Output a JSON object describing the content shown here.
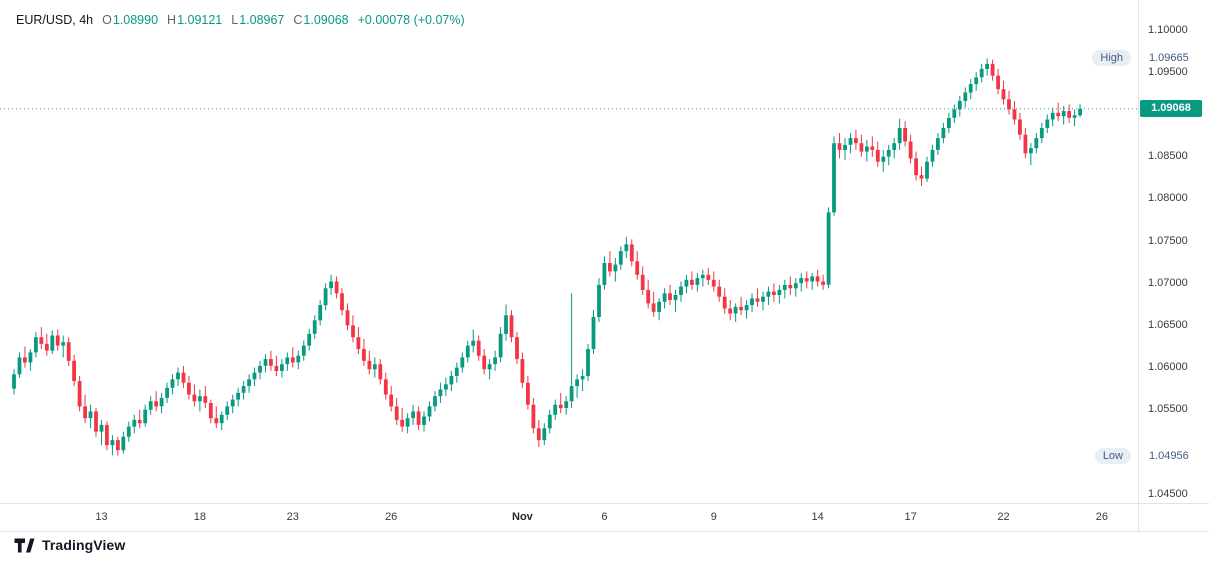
{
  "legend": {
    "symbol_interval": "EUR/USD, 4h",
    "ohlc": [
      {
        "label": "O",
        "value": "1.08990"
      },
      {
        "label": "H",
        "value": "1.09121"
      },
      {
        "label": "L",
        "value": "1.08967"
      },
      {
        "label": "C",
        "value": "1.09068"
      }
    ],
    "change": "+0.00078 (+0.07%)"
  },
  "price_axis": {
    "ticks": [
      {
        "label": "1.10000",
        "value": 1.1
      },
      {
        "label": "1.09500",
        "value": 1.095
      },
      {
        "label": "1.08500",
        "value": 1.085
      },
      {
        "label": "1.08000",
        "value": 1.08
      },
      {
        "label": "1.07500",
        "value": 1.075
      },
      {
        "label": "1.07000",
        "value": 1.07
      },
      {
        "label": "1.06500",
        "value": 1.065
      },
      {
        "label": "1.06000",
        "value": 1.06
      },
      {
        "label": "1.05500",
        "value": 1.055
      },
      {
        "label": "1.04500",
        "value": 1.045
      }
    ],
    "high_badge": {
      "label": "High",
      "value": "1.09665",
      "price": 1.09665
    },
    "low_badge": {
      "label": "Low",
      "value": "1.04956",
      "price": 1.04956
    },
    "last_badge": {
      "value": "1.09068",
      "price": 1.09068
    }
  },
  "time_axis": {
    "ticks": [
      {
        "label": "13",
        "index": 16
      },
      {
        "label": "18",
        "index": 34
      },
      {
        "label": "23",
        "index": 51
      },
      {
        "label": "26",
        "index": 69
      },
      {
        "label": "Nov",
        "index": 93,
        "major": true
      },
      {
        "label": "6",
        "index": 108
      },
      {
        "label": "9",
        "index": 128
      },
      {
        "label": "14",
        "index": 147
      },
      {
        "label": "17",
        "index": 164
      },
      {
        "label": "22",
        "index": 181
      },
      {
        "label": "26",
        "index": 199
      }
    ]
  },
  "branding": {
    "name": "TradingView"
  },
  "colors": {
    "up": "#089981",
    "down": "#F23645",
    "last_line": "#089981",
    "last_badge_bg": "#089981",
    "axis_text": "#363a45",
    "hl_text": "#45597c",
    "hl_pill_bg": "#e9edf6"
  },
  "chart_data": {
    "type": "candlestick",
    "symbol": "EUR/USD",
    "interval": "4h",
    "title": "EUR/USD 4h candlestick chart",
    "ylim": [
      1.0443,
      1.1012
    ],
    "grid": false,
    "session_high": 1.09665,
    "session_low": 1.04956,
    "last_close": 1.09068,
    "last_ohlc": {
      "open": 1.0899,
      "high": 1.09121,
      "low": 1.08967,
      "close": 1.09068,
      "change": "+0.00078",
      "change_pct": "+0.07%"
    },
    "candles": [
      [
        1.0575,
        1.0598,
        1.0568,
        1.0592
      ],
      [
        1.0592,
        1.0618,
        1.0588,
        1.0612
      ],
      [
        1.0612,
        1.0625,
        1.06,
        1.0606
      ],
      [
        1.0606,
        1.0622,
        1.0596,
        1.0618
      ],
      [
        1.0618,
        1.0642,
        1.0612,
        1.0636
      ],
      [
        1.0636,
        1.0648,
        1.0622,
        1.0628
      ],
      [
        1.0628,
        1.064,
        1.0614,
        1.062
      ],
      [
        1.062,
        1.0644,
        1.0616,
        1.0638
      ],
      [
        1.0638,
        1.0645,
        1.062,
        1.0626
      ],
      [
        1.0626,
        1.0638,
        1.0612,
        1.063
      ],
      [
        1.063,
        1.0636,
        1.0602,
        1.0608
      ],
      [
        1.0608,
        1.0615,
        1.0578,
        1.0584
      ],
      [
        1.0584,
        1.059,
        1.0548,
        1.0554
      ],
      [
        1.0554,
        1.0568,
        1.0534,
        1.054
      ],
      [
        1.054,
        1.0556,
        1.0528,
        1.0548
      ],
      [
        1.0548,
        1.0552,
        1.0518,
        1.0524
      ],
      [
        1.0524,
        1.0538,
        1.0508,
        1.0532
      ],
      [
        1.0532,
        1.0536,
        1.0502,
        1.0508
      ],
      [
        1.0508,
        1.052,
        1.0496,
        1.0514
      ],
      [
        1.0514,
        1.0518,
        1.04956,
        1.0502
      ],
      [
        1.0502,
        1.0524,
        1.0498,
        1.0518
      ],
      [
        1.0518,
        1.0536,
        1.0512,
        1.053
      ],
      [
        1.053,
        1.0544,
        1.0522,
        1.0538
      ],
      [
        1.0538,
        1.055,
        1.0528,
        1.0534
      ],
      [
        1.0534,
        1.0556,
        1.053,
        1.055
      ],
      [
        1.055,
        1.0566,
        1.0544,
        1.056
      ],
      [
        1.056,
        1.0572,
        1.0548,
        1.0554
      ],
      [
        1.0554,
        1.057,
        1.0546,
        1.0564
      ],
      [
        1.0564,
        1.0582,
        1.0558,
        1.0576
      ],
      [
        1.0576,
        1.0592,
        1.0568,
        1.0586
      ],
      [
        1.0586,
        1.06,
        1.0578,
        1.0594
      ],
      [
        1.0594,
        1.0602,
        1.0576,
        1.0582
      ],
      [
        1.0582,
        1.059,
        1.0562,
        1.0568
      ],
      [
        1.0568,
        1.058,
        1.0554,
        1.056
      ],
      [
        1.056,
        1.0574,
        1.0548,
        1.0566
      ],
      [
        1.0566,
        1.0578,
        1.0552,
        1.0558
      ],
      [
        1.0558,
        1.0562,
        1.0534,
        1.054
      ],
      [
        1.054,
        1.0554,
        1.0528,
        1.0534
      ],
      [
        1.0534,
        1.0548,
        1.0526,
        1.0544
      ],
      [
        1.0544,
        1.056,
        1.0538,
        1.0554
      ],
      [
        1.0554,
        1.0568,
        1.0546,
        1.0562
      ],
      [
        1.0562,
        1.0576,
        1.0554,
        1.057
      ],
      [
        1.057,
        1.0584,
        1.0562,
        1.0578
      ],
      [
        1.0578,
        1.0592,
        1.057,
        1.0586
      ],
      [
        1.0586,
        1.06,
        1.0578,
        1.0594
      ],
      [
        1.0594,
        1.0608,
        1.0586,
        1.0602
      ],
      [
        1.0602,
        1.0616,
        1.0594,
        1.061
      ],
      [
        1.061,
        1.062,
        1.0596,
        1.0602
      ],
      [
        1.0602,
        1.0614,
        1.059,
        1.0596
      ],
      [
        1.0596,
        1.061,
        1.0588,
        1.0604
      ],
      [
        1.0604,
        1.0618,
        1.0596,
        1.0612
      ],
      [
        1.0612,
        1.0624,
        1.06,
        1.0606
      ],
      [
        1.0606,
        1.062,
        1.0598,
        1.0614
      ],
      [
        1.0614,
        1.0632,
        1.0608,
        1.0626
      ],
      [
        1.0626,
        1.0646,
        1.062,
        1.064
      ],
      [
        1.064,
        1.0662,
        1.0634,
        1.0656
      ],
      [
        1.0656,
        1.068,
        1.065,
        1.0674
      ],
      [
        1.0674,
        1.07,
        1.0668,
        1.0694
      ],
      [
        1.0694,
        1.071,
        1.0686,
        1.0702
      ],
      [
        1.0702,
        1.0708,
        1.0682,
        1.0688
      ],
      [
        1.0688,
        1.0694,
        1.0662,
        1.0668
      ],
      [
        1.0668,
        1.0676,
        1.0644,
        1.065
      ],
      [
        1.065,
        1.0662,
        1.063,
        1.0636
      ],
      [
        1.0636,
        1.0648,
        1.0616,
        1.0622
      ],
      [
        1.0622,
        1.0634,
        1.0602,
        1.0608
      ],
      [
        1.0608,
        1.062,
        1.0592,
        1.0598
      ],
      [
        1.0598,
        1.0612,
        1.0588,
        1.0604
      ],
      [
        1.0604,
        1.061,
        1.058,
        1.0586
      ],
      [
        1.0586,
        1.0594,
        1.0562,
        1.0568
      ],
      [
        1.0568,
        1.0578,
        1.0548,
        1.0554
      ],
      [
        1.0554,
        1.0564,
        1.0532,
        1.0538
      ],
      [
        1.0538,
        1.0552,
        1.0524,
        1.053
      ],
      [
        1.053,
        1.0546,
        1.0522,
        1.054
      ],
      [
        1.054,
        1.0556,
        1.0532,
        1.0548
      ],
      [
        1.0548,
        1.0554,
        1.0526,
        1.0532
      ],
      [
        1.0532,
        1.0548,
        1.0524,
        1.0542
      ],
      [
        1.0542,
        1.056,
        1.0536,
        1.0554
      ],
      [
        1.0554,
        1.0572,
        1.0548,
        1.0566
      ],
      [
        1.0566,
        1.0582,
        1.0558,
        1.0574
      ],
      [
        1.0574,
        1.0588,
        1.0566,
        1.058
      ],
      [
        1.058,
        1.0596,
        1.0572,
        1.059
      ],
      [
        1.059,
        1.0606,
        1.0582,
        1.06
      ],
      [
        1.06,
        1.0618,
        1.0594,
        1.0612
      ],
      [
        1.0612,
        1.0632,
        1.0606,
        1.0626
      ],
      [
        1.0626,
        1.0645,
        1.0618,
        1.0632
      ],
      [
        1.0632,
        1.0638,
        1.0608,
        1.0614
      ],
      [
        1.0614,
        1.0622,
        1.0592,
        1.0598
      ],
      [
        1.0598,
        1.061,
        1.0586,
        1.0604
      ],
      [
        1.0604,
        1.062,
        1.0596,
        1.0612
      ],
      [
        1.0612,
        1.0648,
        1.0606,
        1.064
      ],
      [
        1.064,
        1.0675,
        1.0632,
        1.0662
      ],
      [
        1.0662,
        1.0668,
        1.063,
        1.0636
      ],
      [
        1.0636,
        1.0642,
        1.0604,
        1.061
      ],
      [
        1.061,
        1.0618,
        1.0576,
        1.0582
      ],
      [
        1.0582,
        1.059,
        1.055,
        1.0556
      ],
      [
        1.0556,
        1.0564,
        1.0522,
        1.0528
      ],
      [
        1.0528,
        1.0538,
        1.0506,
        1.0514
      ],
      [
        1.0514,
        1.0534,
        1.0508,
        1.0528
      ],
      [
        1.0528,
        1.055,
        1.0522,
        1.0544
      ],
      [
        1.0544,
        1.0562,
        1.0538,
        1.0556
      ],
      [
        1.0556,
        1.057,
        1.0546,
        1.0552
      ],
      [
        1.0552,
        1.0566,
        1.0544,
        1.056
      ],
      [
        1.056,
        1.0688,
        1.0552,
        1.0578
      ],
      [
        1.0578,
        1.0592,
        1.0564,
        1.0586
      ],
      [
        1.0586,
        1.0598,
        1.0572,
        1.059
      ],
      [
        1.059,
        1.0628,
        1.0584,
        1.0622
      ],
      [
        1.0622,
        1.0668,
        1.0616,
        1.066
      ],
      [
        1.066,
        1.0706,
        1.0654,
        1.0698
      ],
      [
        1.0698,
        1.0732,
        1.0692,
        1.0724
      ],
      [
        1.0724,
        1.0738,
        1.0708,
        1.0714
      ],
      [
        1.0714,
        1.073,
        1.0702,
        1.0722
      ],
      [
        1.0722,
        1.0744,
        1.0716,
        1.0738
      ],
      [
        1.0738,
        1.0755,
        1.073,
        1.0746
      ],
      [
        1.0746,
        1.0752,
        1.072,
        1.0726
      ],
      [
        1.0726,
        1.0738,
        1.0704,
        1.071
      ],
      [
        1.071,
        1.072,
        1.0686,
        1.0692
      ],
      [
        1.0692,
        1.0704,
        1.067,
        1.0676
      ],
      [
        1.0676,
        1.069,
        1.066,
        1.0666
      ],
      [
        1.0666,
        1.0682,
        1.0656,
        1.0678
      ],
      [
        1.0678,
        1.0694,
        1.067,
        1.0688
      ],
      [
        1.0688,
        1.0698,
        1.0674,
        1.068
      ],
      [
        1.068,
        1.0692,
        1.0666,
        1.0686
      ],
      [
        1.0686,
        1.0702,
        1.0678,
        1.0696
      ],
      [
        1.0696,
        1.071,
        1.0688,
        1.0704
      ],
      [
        1.0704,
        1.0714,
        1.0692,
        1.0698
      ],
      [
        1.0698,
        1.0712,
        1.069,
        1.0706
      ],
      [
        1.0706,
        1.0716,
        1.0696,
        1.071
      ],
      [
        1.071,
        1.0718,
        1.0698,
        1.0704
      ],
      [
        1.0704,
        1.0714,
        1.069,
        1.0696
      ],
      [
        1.0696,
        1.0704,
        1.0678,
        1.0684
      ],
      [
        1.0684,
        1.0694,
        1.0664,
        1.067
      ],
      [
        1.067,
        1.068,
        1.0656,
        1.0664
      ],
      [
        1.0664,
        1.0676,
        1.0654,
        1.0672
      ],
      [
        1.0672,
        1.0684,
        1.0662,
        1.0668
      ],
      [
        1.0668,
        1.068,
        1.0658,
        1.0674
      ],
      [
        1.0674,
        1.0688,
        1.0666,
        1.0682
      ],
      [
        1.0682,
        1.0694,
        1.0672,
        1.0678
      ],
      [
        1.0678,
        1.069,
        1.0668,
        1.0684
      ],
      [
        1.0684,
        1.0696,
        1.0674,
        1.069
      ],
      [
        1.069,
        1.07,
        1.0678,
        1.0686
      ],
      [
        1.0686,
        1.0698,
        1.0676,
        1.0692
      ],
      [
        1.0692,
        1.0704,
        1.0682,
        1.0698
      ],
      [
        1.0698,
        1.0708,
        1.0686,
        1.0694
      ],
      [
        1.0694,
        1.0706,
        1.0684,
        1.07
      ],
      [
        1.07,
        1.0712,
        1.069,
        1.0706
      ],
      [
        1.0706,
        1.0714,
        1.0694,
        1.0702
      ],
      [
        1.0702,
        1.0712,
        1.0692,
        1.0708
      ],
      [
        1.0708,
        1.0716,
        1.0696,
        1.0702
      ],
      [
        1.0702,
        1.071,
        1.0692,
        1.0698
      ],
      [
        1.0698,
        1.079,
        1.0694,
        1.0784
      ],
      [
        1.0784,
        1.0874,
        1.078,
        1.0866
      ],
      [
        1.0866,
        1.0878,
        1.0848,
        1.0858
      ],
      [
        1.0858,
        1.0872,
        1.0846,
        1.0864
      ],
      [
        1.0864,
        1.0878,
        1.0854,
        1.0872
      ],
      [
        1.0872,
        1.0882,
        1.0858,
        1.0866
      ],
      [
        1.0866,
        1.0876,
        1.085,
        1.0856
      ],
      [
        1.0856,
        1.087,
        1.0844,
        1.0862
      ],
      [
        1.0862,
        1.0874,
        1.085,
        1.0858
      ],
      [
        1.0858,
        1.0868,
        1.0838,
        1.0844
      ],
      [
        1.0844,
        1.0858,
        1.0832,
        1.085
      ],
      [
        1.085,
        1.0864,
        1.084,
        1.0858
      ],
      [
        1.0858,
        1.0872,
        1.0848,
        1.0866
      ],
      [
        1.0866,
        1.0895,
        1.0858,
        1.0884
      ],
      [
        1.0884,
        1.0892,
        1.0862,
        1.0868
      ],
      [
        1.0868,
        1.0876,
        1.0842,
        1.0848
      ],
      [
        1.0848,
        1.0856,
        1.0822,
        1.0828
      ],
      [
        1.0828,
        1.0838,
        1.0815,
        1.0824
      ],
      [
        1.0824,
        1.085,
        1.082,
        1.0844
      ],
      [
        1.0844,
        1.0864,
        1.0838,
        1.0858
      ],
      [
        1.0858,
        1.0878,
        1.0852,
        1.0872
      ],
      [
        1.0872,
        1.089,
        1.0866,
        1.0884
      ],
      [
        1.0884,
        1.0902,
        1.0878,
        1.0896
      ],
      [
        1.0896,
        1.0912,
        1.089,
        1.0906
      ],
      [
        1.0906,
        1.0922,
        1.0898,
        1.0916
      ],
      [
        1.0916,
        1.0932,
        1.0908,
        1.0926
      ],
      [
        1.0926,
        1.0942,
        1.0918,
        1.0936
      ],
      [
        1.0936,
        1.095,
        1.0928,
        1.0944
      ],
      [
        1.0944,
        1.096,
        1.0938,
        1.0954
      ],
      [
        1.0954,
        1.09665,
        1.0946,
        1.096
      ],
      [
        1.096,
        1.0965,
        1.094,
        1.0946
      ],
      [
        1.0946,
        1.0954,
        1.0924,
        1.093
      ],
      [
        1.093,
        1.094,
        1.0912,
        1.0918
      ],
      [
        1.0918,
        1.0928,
        1.09,
        1.0906
      ],
      [
        1.0906,
        1.0916,
        1.0888,
        1.0894
      ],
      [
        1.0894,
        1.0902,
        1.087,
        1.0876
      ],
      [
        1.0876,
        1.0884,
        1.0848,
        1.0854
      ],
      [
        1.0854,
        1.0866,
        1.084,
        1.086
      ],
      [
        1.086,
        1.0878,
        1.0854,
        1.0872
      ],
      [
        1.0872,
        1.089,
        1.0866,
        1.0884
      ],
      [
        1.0884,
        1.09,
        1.0878,
        1.0894
      ],
      [
        1.0894,
        1.0908,
        1.0886,
        1.0902
      ],
      [
        1.0902,
        1.0914,
        1.0892,
        1.0898
      ],
      [
        1.0898,
        1.091,
        1.0888,
        1.0904
      ],
      [
        1.0904,
        1.0912,
        1.089,
        1.0896
      ],
      [
        1.0896,
        1.0906,
        1.0886,
        1.0899
      ],
      [
        1.0899,
        1.09121,
        1.08967,
        1.09068
      ]
    ]
  }
}
